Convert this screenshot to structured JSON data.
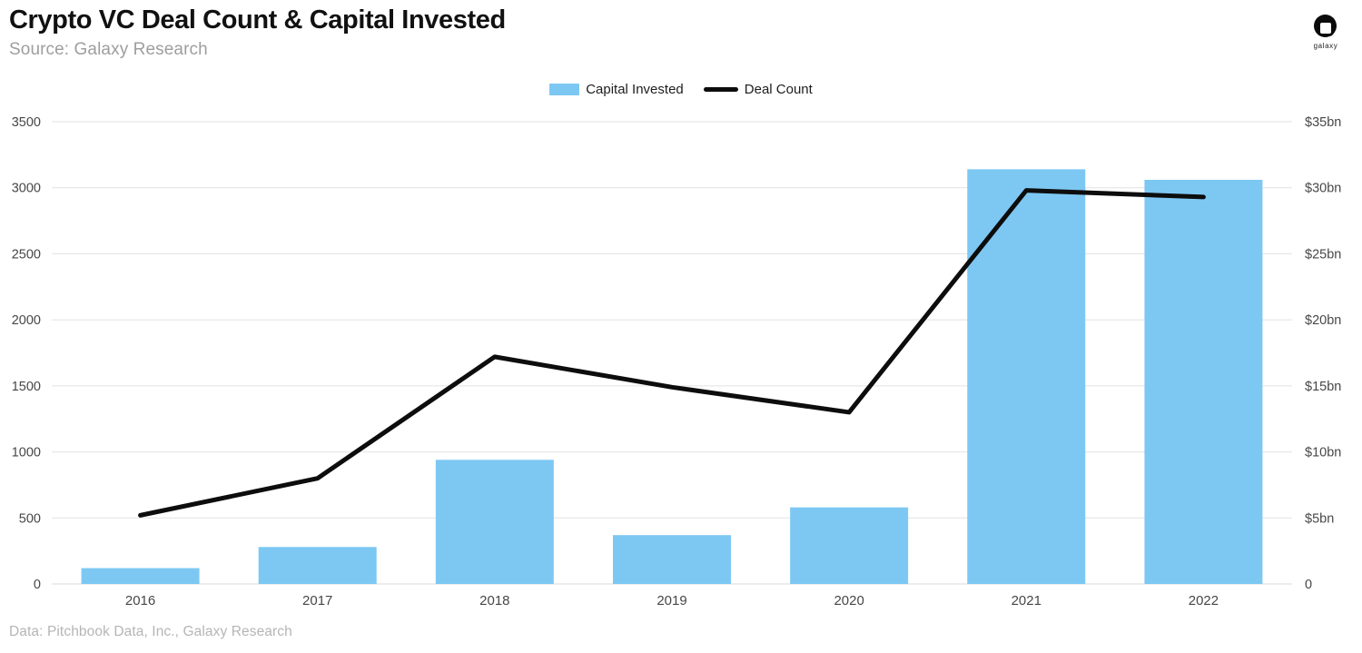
{
  "header": {
    "title": "Crypto VC Deal Count & Capital Invested",
    "subtitle": "Source: Galaxy Research",
    "logo_text": "galaxy"
  },
  "legend": {
    "capital_invested": "Capital Invested",
    "deal_count": "Deal Count"
  },
  "footer": {
    "attribution": "Data: Pitchbook Data, Inc., Galaxy Research"
  },
  "colors": {
    "bar": "#7dc8f3",
    "line": "#0d0d0d",
    "grid": "#e2e2e2",
    "baseline": "#d8d8d8",
    "axis_text": "#474747",
    "title": "#111111",
    "subtitle": "#9e9e9e",
    "footer": "#b5b5b5"
  },
  "chart_data": {
    "type": "bar",
    "subtype": "combo bar + line, dual axis",
    "title": "Crypto VC Deal Count & Capital Invested",
    "categories": [
      "2016",
      "2017",
      "2018",
      "2019",
      "2020",
      "2021",
      "2022"
    ],
    "series": [
      {
        "name": "Capital Invested",
        "type": "bar",
        "axis": "right",
        "unit": "$bn",
        "values": [
          1.2,
          2.8,
          9.4,
          3.7,
          5.8,
          31.4,
          30.6
        ]
      },
      {
        "name": "Deal Count",
        "type": "line",
        "axis": "left",
        "unit": "deals",
        "values": [
          520,
          800,
          1720,
          1490,
          1300,
          2980,
          2930
        ]
      }
    ],
    "left_axis": {
      "label": "Deal Count",
      "min": 0,
      "max": 3500,
      "step": 500,
      "ticks": [
        "0",
        "500",
        "1000",
        "1500",
        "2000",
        "2500",
        "3000",
        "3500"
      ]
    },
    "right_axis": {
      "label": "Capital Invested",
      "min": 0,
      "max": 35,
      "step": 5,
      "ticks": [
        "0",
        "$5bn",
        "$10bn",
        "$15bn",
        "$20bn",
        "$25bn",
        "$30bn",
        "$35bn"
      ]
    },
    "grid": true,
    "legend_position": "top-center"
  }
}
